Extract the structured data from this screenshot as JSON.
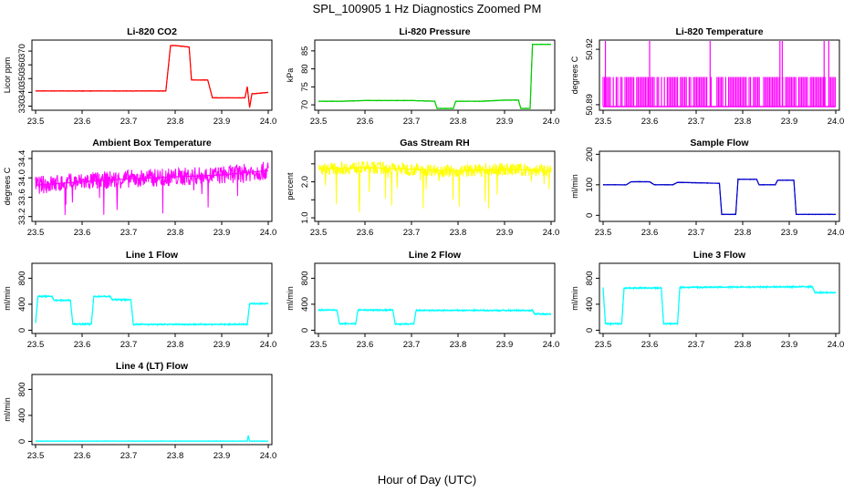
{
  "figure": {
    "title": "SPL_100905  1 Hz Diagnostics Zoomed PM",
    "xlabel": "Hour of Day (UTC)"
  },
  "chart_data": [
    {
      "type": "line",
      "title": "Li-820 CO2",
      "xlabel": "",
      "ylabel": "Licor ppm",
      "color": "#ff0000",
      "xlim": [
        23.5,
        24.0
      ],
      "ylim": [
        327,
        378
      ],
      "x_ticks": [
        "23.5",
        "23.6",
        "23.7",
        "23.8",
        "23.9",
        "24.0"
      ],
      "y_ticks": [
        330,
        340,
        350,
        360,
        370
      ],
      "x": [
        23.5,
        23.55,
        23.6,
        23.7,
        23.78,
        23.79,
        23.8,
        23.83,
        23.835,
        23.87,
        23.88,
        23.95,
        23.955,
        23.96,
        23.965,
        23.97,
        24.0
      ],
      "values": [
        341,
        341,
        341,
        341,
        341,
        374,
        374,
        373,
        349,
        349,
        336,
        336,
        344,
        329,
        339,
        339,
        340
      ]
    },
    {
      "type": "line",
      "title": "Li-820 Pressure",
      "xlabel": "",
      "ylabel": "kPa",
      "color": "#00cc00",
      "xlim": [
        23.5,
        24.0
      ],
      "ylim": [
        68.5,
        88
      ],
      "x_ticks": [
        "23.5",
        "23.6",
        "23.7",
        "23.8",
        "23.9",
        "24.0"
      ],
      "y_ticks": [
        70,
        75,
        80,
        85
      ],
      "x": [
        23.5,
        23.55,
        23.6,
        23.7,
        23.75,
        23.755,
        23.79,
        23.795,
        23.85,
        23.9,
        23.93,
        23.935,
        23.955,
        23.96,
        24.0
      ],
      "values": [
        71,
        71,
        71.2,
        71.2,
        71,
        69,
        69,
        71,
        71,
        71.3,
        71.3,
        69,
        69,
        86.8,
        86.8
      ]
    },
    {
      "type": "line",
      "title": "Li-820 Temperature",
      "xlabel": "",
      "ylabel": "degrees C",
      "color": "#ff00ff",
      "xlim": [
        23.5,
        24.0
      ],
      "ylim": [
        50.887,
        50.925
      ],
      "x_ticks": [
        "23.5",
        "23.6",
        "23.7",
        "23.8",
        "23.9",
        "24.0"
      ],
      "y_ticks": [
        50.89,
        50.92
      ],
      "y_tick_labels": [
        "50.89",
        "50.92"
      ],
      "band": [
        50.889,
        50.905
      ],
      "spikes": [
        23.505,
        23.6,
        23.73,
        23.88,
        23.885,
        23.975,
        23.985
      ]
    },
    {
      "type": "line",
      "title": "Ambient Box Temperature",
      "xlabel": "",
      "ylabel": "degrees C",
      "color": "#ff00ff",
      "xlim": [
        23.5,
        24.0
      ],
      "ylim": [
        33.1,
        34.55
      ],
      "x_ticks": [
        "23.5",
        "23.6",
        "23.7",
        "23.8",
        "23.9",
        "24.0"
      ],
      "y_ticks": [
        33.2,
        33.6,
        34.0,
        34.4
      ],
      "y_tick_labels": [
        "33.2",
        "33.6",
        "34.0",
        "34.4"
      ],
      "x": [
        23.5,
        23.6,
        23.7,
        23.8,
        23.9,
        24.0
      ],
      "values": [
        33.85,
        33.92,
        33.98,
        34.02,
        34.06,
        34.15
      ]
    },
    {
      "type": "line",
      "title": "Gas Stream RH",
      "xlabel": "",
      "ylabel": "percent",
      "color": "#ffff00",
      "xlim": [
        23.5,
        24.0
      ],
      "ylim": [
        0.9,
        2.85
      ],
      "x_ticks": [
        "23.5",
        "23.6",
        "23.7",
        "23.8",
        "23.9",
        "24.0"
      ],
      "y_ticks": [
        1.0,
        1.5,
        2.0,
        2.5
      ],
      "y_tick_labels": [
        "1.0",
        "",
        "2.0",
        ""
      ],
      "x": [
        23.5,
        23.6,
        23.7,
        23.8,
        23.9,
        24.0
      ],
      "values": [
        2.35,
        2.4,
        2.35,
        2.3,
        2.35,
        2.3
      ]
    },
    {
      "type": "line",
      "title": "Sample Flow",
      "xlabel": "",
      "ylabel": "ml/min",
      "color": "#0000cc",
      "xlim": [
        23.5,
        24.0
      ],
      "ylim": [
        -20,
        210
      ],
      "x_ticks": [
        "23.5",
        "23.6",
        "23.7",
        "23.8",
        "23.9",
        "24.0"
      ],
      "y_ticks": [
        0,
        100,
        200
      ],
      "x": [
        23.5,
        23.55,
        23.56,
        23.6,
        23.61,
        23.65,
        23.66,
        23.75,
        23.755,
        23.785,
        23.79,
        23.83,
        23.835,
        23.87,
        23.875,
        23.91,
        23.915,
        24.0
      ],
      "values": [
        100,
        100,
        110,
        110,
        100,
        100,
        108,
        105,
        3,
        3,
        118,
        118,
        100,
        100,
        115,
        115,
        3,
        3
      ]
    },
    {
      "type": "line",
      "title": "Line 1 Flow",
      "xlabel": "",
      "ylabel": "ml/min",
      "color": "#00ffff",
      "xlim": [
        23.5,
        24.0
      ],
      "ylim": [
        -50,
        1030
      ],
      "x_ticks": [
        "23.5",
        "23.6",
        "23.7",
        "23.8",
        "23.9",
        "24.0"
      ],
      "y_ticks": [
        0,
        400,
        800
      ],
      "y_tick_labels": [
        "0",
        "400",
        "800"
      ],
      "x": [
        23.5,
        23.505,
        23.535,
        23.54,
        23.575,
        23.58,
        23.62,
        23.625,
        23.66,
        23.665,
        23.705,
        23.71,
        23.955,
        23.96,
        24.0
      ],
      "values": [
        110,
        520,
        520,
        460,
        460,
        95,
        95,
        520,
        520,
        470,
        470,
        90,
        90,
        410,
        410
      ]
    },
    {
      "type": "line",
      "title": "Line 2 Flow",
      "xlabel": "",
      "ylabel": "ml/min",
      "color": "#00ffff",
      "xlim": [
        23.5,
        24.0
      ],
      "ylim": [
        -50,
        1030
      ],
      "x_ticks": [
        "23.5",
        "23.6",
        "23.7",
        "23.8",
        "23.9",
        "24.0"
      ],
      "y_ticks": [
        0,
        400,
        800
      ],
      "y_tick_labels": [
        "0",
        "400",
        "800"
      ],
      "x": [
        23.5,
        23.54,
        23.545,
        23.58,
        23.585,
        23.66,
        23.665,
        23.705,
        23.71,
        23.96,
        23.965,
        24.0
      ],
      "values": [
        310,
        310,
        100,
        100,
        310,
        310,
        95,
        95,
        305,
        305,
        250,
        250
      ]
    },
    {
      "type": "line",
      "title": "Line 3 Flow",
      "xlabel": "",
      "ylabel": "ml/min",
      "color": "#00ffff",
      "xlim": [
        23.5,
        24.0
      ],
      "ylim": [
        -50,
        1030
      ],
      "x_ticks": [
        "23.5",
        "23.6",
        "23.7",
        "23.8",
        "23.9",
        "24.0"
      ],
      "y_ticks": [
        0,
        400,
        800
      ],
      "y_tick_labels": [
        "0",
        "400",
        "800"
      ],
      "x": [
        23.5,
        23.505,
        23.54,
        23.545,
        23.625,
        23.63,
        23.66,
        23.665,
        23.95,
        23.955,
        24.0
      ],
      "values": [
        660,
        100,
        100,
        650,
        650,
        100,
        100,
        660,
        670,
        580,
        580
      ]
    },
    {
      "type": "line",
      "title": "Line 4 (LT) Flow",
      "xlabel": "",
      "ylabel": "ml/min",
      "color": "#00ffff",
      "xlim": [
        23.5,
        24.0
      ],
      "ylim": [
        -50,
        1030
      ],
      "x_ticks": [
        "23.5",
        "23.6",
        "23.7",
        "23.8",
        "23.9",
        "24.0"
      ],
      "y_ticks": [
        0,
        400,
        800
      ],
      "y_tick_labels": [
        "0",
        "400",
        "800"
      ],
      "x": [
        23.5,
        23.955,
        23.957,
        23.96,
        24.0
      ],
      "values": [
        5,
        5,
        90,
        5,
        5
      ]
    }
  ]
}
